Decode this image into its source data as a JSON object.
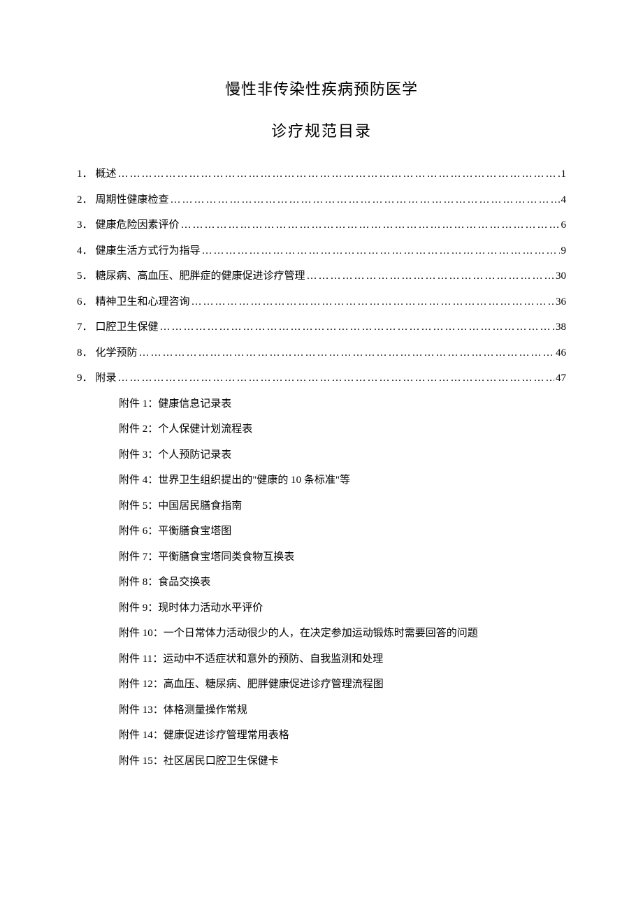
{
  "title": {
    "main": "慢性非传染性疾病预防医学",
    "sub": "诊疗规范目录"
  },
  "toc": [
    {
      "num": "1．",
      "label": "概述",
      "page": "1"
    },
    {
      "num": "2．",
      "label": "周期性健康检查",
      "page": "4"
    },
    {
      "num": "3．",
      "label": "健康危险因素评价",
      "page": "6"
    },
    {
      "num": "4．",
      "label": "健康生活方式行为指导",
      "page": "9"
    },
    {
      "num": "5．",
      "label": "糖尿病、高血压、肥胖症的健康促进诊疗管理",
      "page": "30"
    },
    {
      "num": "6．",
      "label": "精神卫生和心理咨询",
      "page": "36"
    },
    {
      "num": "7．",
      "label": "口腔卫生保健",
      "page": "38"
    },
    {
      "num": "8．",
      "label": "化学预防",
      "page": "46"
    },
    {
      "num": "9．",
      "label": "附录",
      "page": "47"
    }
  ],
  "appendix": [
    "附件 1：健康信息记录表",
    "附件 2：个人保健计划流程表",
    "附件 3：个人预防记录表",
    "附件 4：世界卫生组织提出的\"健康的 10 条标准\"等",
    "附件 5：中国居民膳食指南",
    "附件 6：平衡膳食宝塔图",
    "附件 7：平衡膳食宝塔同类食物互换表",
    "附件 8：食品交换表",
    "附件 9：现时体力活动水平评价",
    "附件 10：一个日常体力活动很少的人，在决定参加运动锻炼时需要回答的问题",
    "附件 11：运动中不适症状和意外的预防、自我监测和处理",
    "附件 12：高血压、糖尿病、肥胖健康促进诊疗管理流程图",
    "附件 13：体格测量操作常规",
    "附件 14：健康促进诊疗管理常用表格",
    "附件 15：社区居民口腔卫生保健卡"
  ]
}
